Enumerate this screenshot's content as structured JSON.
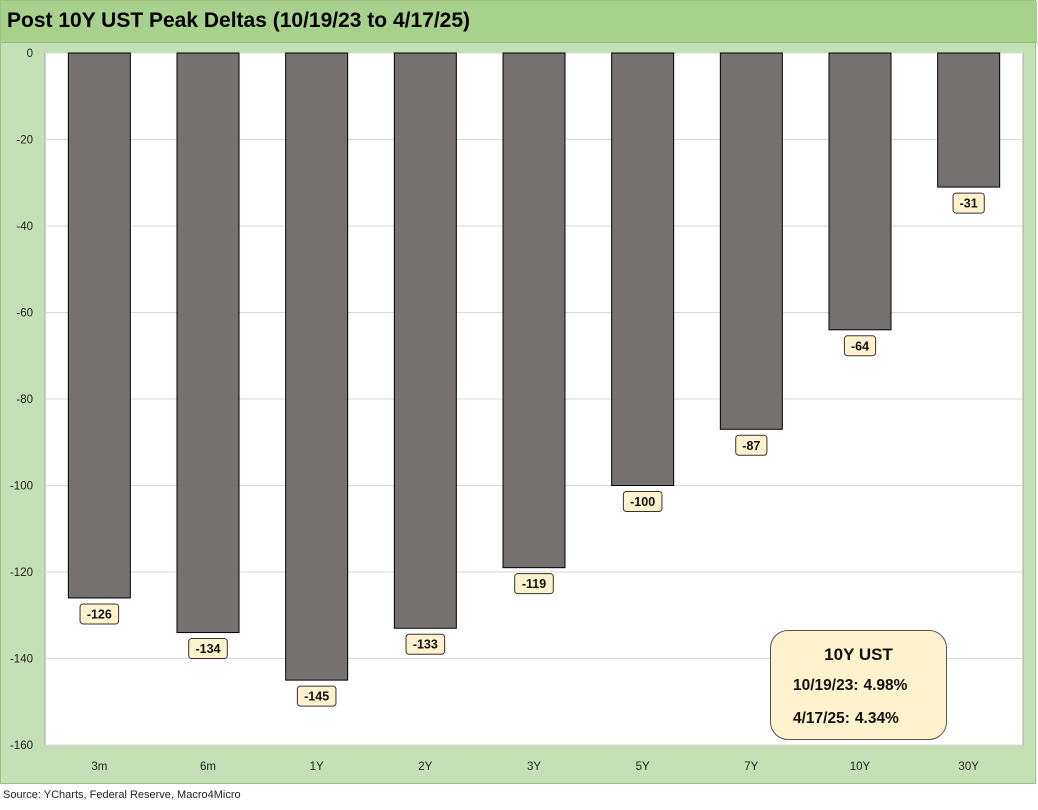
{
  "title": "Post 10Y UST Peak Deltas (10/19/23 to 4/17/25)",
  "source": "Source: YCharts, Federal Reserve, Macro4Micro",
  "colors": {
    "frame_bg": "#c5e0b4",
    "title_bg": "#a9d18e",
    "bar": "#767171",
    "data_label_bg": "#fff2cc",
    "gridline": "#d9d9d9"
  },
  "chart_data": {
    "type": "bar",
    "categories": [
      "3m",
      "6m",
      "1Y",
      "2Y",
      "3Y",
      "5Y",
      "7Y",
      "10Y",
      "30Y"
    ],
    "values": [
      -126,
      -134,
      -145,
      -133,
      -119,
      -100,
      -87,
      -64,
      -31
    ],
    "data_labels": [
      "-126",
      "-134",
      "-145",
      "-133",
      "-119",
      "-100",
      "-87",
      "-64",
      "-31"
    ],
    "title": "Post 10Y UST Peak Deltas (10/19/23 to 4/17/25)",
    "xlabel": "",
    "ylabel": "",
    "ylim": [
      -160,
      0
    ],
    "y_ticks": [
      0,
      -20,
      -40,
      -60,
      -80,
      -100,
      -120,
      -140,
      -160
    ],
    "y_tick_labels": [
      "0",
      "-20",
      "-40",
      "-60",
      "-80",
      "-100",
      "-120",
      "-140",
      "-160"
    ],
    "grid": true,
    "legend": "none"
  },
  "info_box": {
    "heading": "10Y UST",
    "rows": [
      {
        "date": "10/19/23:",
        "value": "4.98%"
      },
      {
        "date": "4/17/25:",
        "value": "4.34%"
      }
    ]
  }
}
